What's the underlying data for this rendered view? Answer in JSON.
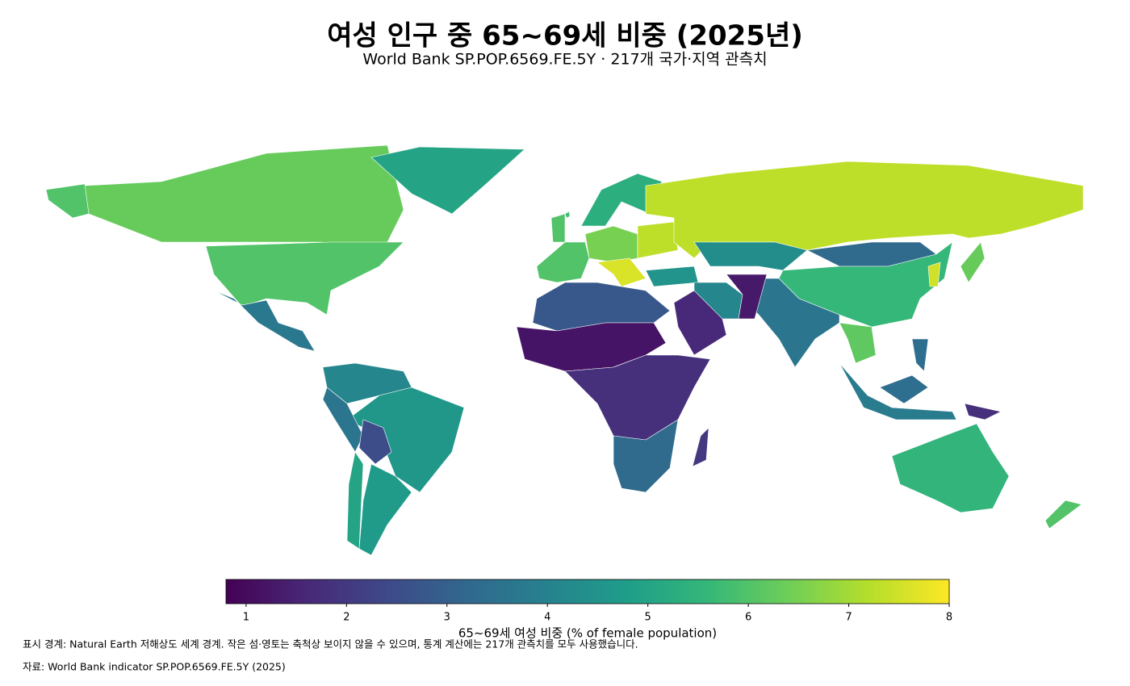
{
  "chart_data": {
    "type": "choropleth",
    "title": "여성 인구 중 65~69세 비중 (2025년)",
    "subtitle": "World Bank SP.POP.6569.FE.5Y · 217개 국가·지역 관측치",
    "colormap": "viridis",
    "clim": [
      0.8,
      8
    ],
    "cticks": [
      1,
      2,
      3,
      4,
      5,
      6,
      7,
      8
    ],
    "colorbar_label": "65~69세 여성 비중 (% of female population)",
    "values": [
      6.3,
      5.0,
      6.0,
      6.0,
      3.7,
      4.1,
      4.6,
      3.6,
      2.5,
      4.7,
      5.0,
      6.0,
      5.8,
      5.3,
      6.5,
      7.3,
      7.6,
      4.5,
      7.3,
      4.3,
      3.3,
      5.6,
      3.6,
      4.1,
      1.3,
      1.6,
      2.8,
      1.2,
      1.8,
      3.3,
      2.0,
      6.3,
      7.5,
      6.2,
      3.8,
      3.4,
      1.8,
      3.4,
      5.5,
      6.0
    ],
    "notes": [
      "표시 경계: Natural Earth 저해상도 세계 경계. 작은 섬·영토는 축척상 보이지 않을 수 있으며, 통계 계산에는 217개 관측치를 모두 사용했습니다.",
      "자료: World Bank indicator SP.POP.6569.FE.5Y (2025)"
    ]
  }
}
